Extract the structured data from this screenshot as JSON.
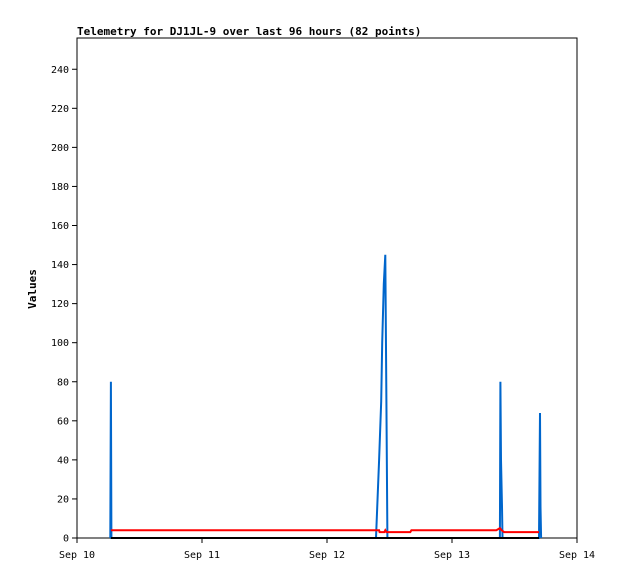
{
  "chart_data": {
    "type": "line",
    "title": "Telemetry for DJ1JL-9 over last 96 hours (82 points)",
    "xlabel": "",
    "ylabel": "Values",
    "x_ticks": [
      "Sep 10",
      "Sep 11",
      "Sep 12",
      "Sep 13",
      "Sep 14"
    ],
    "xlim": [
      0,
      96
    ],
    "y_ticks": [
      0,
      20,
      40,
      60,
      80,
      100,
      120,
      140,
      160,
      180,
      200,
      220,
      240
    ],
    "ylim": [
      0,
      256
    ],
    "grid": false,
    "legend": "none",
    "series": [
      {
        "color": "#0066cc",
        "points": [
          [
            6.4,
            0
          ],
          [
            6.5,
            80
          ],
          [
            6.6,
            0
          ],
          [
            57.4,
            0
          ],
          [
            58.0,
            40
          ],
          [
            58.4,
            70
          ],
          [
            58.6,
            100
          ],
          [
            58.9,
            130
          ],
          [
            59.2,
            145
          ],
          [
            59.4,
            70
          ],
          [
            59.6,
            0
          ],
          [
            81.2,
            0
          ],
          [
            81.3,
            80
          ],
          [
            81.4,
            40
          ],
          [
            81.6,
            16
          ],
          [
            81.7,
            0
          ],
          [
            88.7,
            0
          ],
          [
            88.9,
            64
          ],
          [
            89.0,
            16
          ],
          [
            89.1,
            0
          ]
        ]
      },
      {
        "color": "#ff0000",
        "points": [
          [
            6.5,
            4
          ],
          [
            57.5,
            4
          ],
          [
            58.0,
            4
          ],
          [
            58.1,
            3
          ],
          [
            59.0,
            3
          ],
          [
            59.2,
            4
          ],
          [
            59.4,
            3
          ],
          [
            64.0,
            3
          ],
          [
            64.2,
            4
          ],
          [
            80.5,
            4
          ],
          [
            81.2,
            5
          ],
          [
            81.5,
            4
          ],
          [
            82.0,
            3
          ],
          [
            88.7,
            3
          ]
        ]
      },
      {
        "color": "#000000",
        "points": [
          [
            6.5,
            0
          ],
          [
            88.7,
            0
          ]
        ]
      }
    ]
  }
}
